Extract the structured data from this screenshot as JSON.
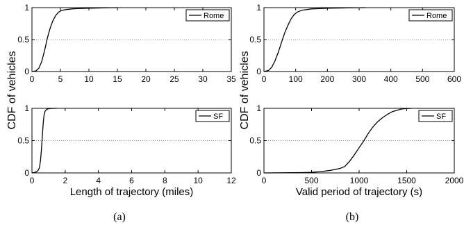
{
  "figure": {
    "ylabel": "CDF of vehicles",
    "captions": [
      "(a)",
      "(b)"
    ]
  },
  "chart_data": [
    {
      "id": "a_top",
      "type": "line",
      "title": "",
      "xlabel": "",
      "ylabel": "",
      "xlim": [
        0,
        35
      ],
      "ylim": [
        0,
        1
      ],
      "xticks": [
        0,
        5,
        10,
        15,
        20,
        25,
        30,
        35
      ],
      "yticks": [
        0,
        0.5,
        1
      ],
      "ytick_labels": [
        "0",
        "0.5",
        "1"
      ],
      "grid": "dotted horizontal at 0.5",
      "legend": "top-right",
      "series": [
        {
          "name": "Rome",
          "x": [
            0,
            0.7,
            1.2,
            1.7,
            2.2,
            2.7,
            3.2,
            3.7,
            4.2,
            4.7,
            5.2,
            6,
            7,
            8,
            10,
            12,
            14,
            15
          ],
          "y": [
            0,
            0.01,
            0.05,
            0.15,
            0.32,
            0.52,
            0.68,
            0.8,
            0.88,
            0.93,
            0.955,
            0.97,
            0.98,
            0.985,
            0.99,
            0.995,
            0.999,
            1
          ]
        }
      ]
    },
    {
      "id": "b_top",
      "type": "line",
      "title": "",
      "xlabel": "",
      "ylabel": "",
      "xlim": [
        0,
        600
      ],
      "ylim": [
        0,
        1
      ],
      "xticks": [
        0,
        100,
        200,
        300,
        400,
        500,
        600
      ],
      "yticks": [
        0,
        0.5,
        1
      ],
      "ytick_labels": [
        "0",
        "0.5",
        "1"
      ],
      "grid": "dotted horizontal at 0.5",
      "legend": "top-right",
      "series": [
        {
          "name": "Rome",
          "x": [
            0,
            15,
            25,
            35,
            45,
            55,
            65,
            75,
            85,
            95,
            105,
            120,
            150,
            200,
            250,
            300,
            320
          ],
          "y": [
            0,
            0.02,
            0.07,
            0.17,
            0.3,
            0.45,
            0.6,
            0.72,
            0.82,
            0.89,
            0.93,
            0.96,
            0.98,
            0.99,
            0.995,
            0.999,
            1
          ]
        }
      ]
    },
    {
      "id": "a_bottom",
      "type": "line",
      "title": "",
      "xlabel": "Length of trajectory (miles)",
      "ylabel": "",
      "xlim": [
        0,
        12
      ],
      "ylim": [
        0,
        1
      ],
      "xticks": [
        0,
        2,
        4,
        6,
        8,
        10,
        12
      ],
      "yticks": [
        0,
        0.5,
        1
      ],
      "ytick_labels": [
        "0",
        "0.5",
        "1"
      ],
      "grid": "dotted horizontal at 0.5",
      "legend": "top-right",
      "series": [
        {
          "name": "SF",
          "x": [
            0,
            0.2,
            0.35,
            0.45,
            0.52,
            0.58,
            0.63,
            0.68,
            0.73,
            0.8,
            0.9,
            1.0,
            1.2,
            1.5
          ],
          "y": [
            0,
            0.01,
            0.03,
            0.08,
            0.2,
            0.4,
            0.6,
            0.78,
            0.9,
            0.96,
            0.985,
            0.995,
            0.999,
            1
          ]
        }
      ]
    },
    {
      "id": "b_bottom",
      "type": "line",
      "title": "",
      "xlabel": "Valid period of trajectory (s)",
      "ylabel": "",
      "xlim": [
        0,
        2000
      ],
      "ylim": [
        0,
        1
      ],
      "xticks": [
        0,
        500,
        1000,
        1500,
        2000
      ],
      "yticks": [
        0,
        0.5,
        1
      ],
      "ytick_labels": [
        "0",
        "0.5",
        "1"
      ],
      "grid": "dotted horizontal at 0.5",
      "legend": "top-right",
      "series": [
        {
          "name": "SF",
          "x": [
            0,
            200,
            400,
            500,
            600,
            700,
            800,
            850,
            900,
            950,
            1000,
            1050,
            1100,
            1150,
            1200,
            1250,
            1300,
            1350,
            1400,
            1450,
            1500,
            1550
          ],
          "y": [
            0,
            0.002,
            0.005,
            0.01,
            0.02,
            0.04,
            0.07,
            0.1,
            0.18,
            0.28,
            0.39,
            0.5,
            0.62,
            0.72,
            0.8,
            0.86,
            0.91,
            0.95,
            0.97,
            0.99,
            0.997,
            1
          ]
        }
      ]
    }
  ]
}
